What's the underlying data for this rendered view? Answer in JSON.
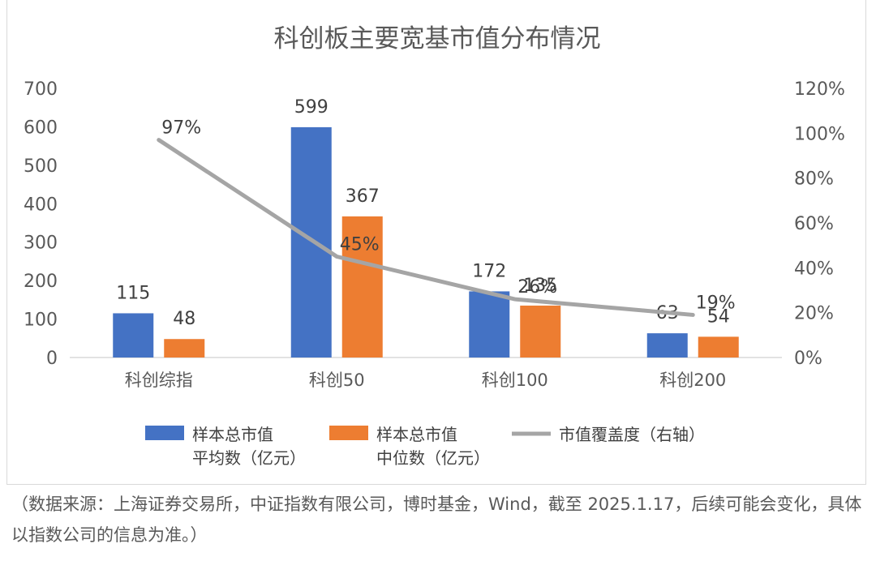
{
  "chart_data": {
    "type": "bar",
    "title": "科创板主要宽基市值分布情况",
    "categories": [
      "科创综指",
      "科创50",
      "科创100",
      "科创200"
    ],
    "series": [
      {
        "name": "样本总市值平均数（亿元）",
        "legend_lines": [
          "样本总市值",
          "平均数（亿元）"
        ],
        "kind": "bar",
        "axis": "left",
        "color": "#4472C4",
        "values": [
          115,
          599,
          172,
          63
        ]
      },
      {
        "name": "样本总市值中位数（亿元）",
        "legend_lines": [
          "样本总市值",
          "中位数（亿元）"
        ],
        "kind": "bar",
        "axis": "left",
        "color": "#ED7D31",
        "values": [
          48,
          367,
          135,
          54
        ]
      },
      {
        "name": "市值覆盖度（右轴）",
        "legend_lines": [
          "市值覆盖度（右轴）"
        ],
        "kind": "line",
        "axis": "right",
        "color": "#A5A5A5",
        "values": [
          97,
          45,
          26,
          19
        ],
        "labels": [
          "97%",
          "45%",
          "26%",
          "19%"
        ]
      }
    ],
    "y_left": {
      "min": 0,
      "max": 700,
      "ticks": [
        "0",
        "100",
        "200",
        "300",
        "400",
        "500",
        "600",
        "700"
      ]
    },
    "y_right": {
      "min": 0,
      "max": 120,
      "ticks": [
        "0%",
        "20%",
        "40%",
        "60%",
        "80%",
        "100%",
        "120%"
      ]
    },
    "grid": false,
    "legend_position": "bottom"
  },
  "footnote": "（数据来源：上海证券交易所，中证指数有限公司，博时基金，Wind，截至 2025.1.17，后续可能会变化，具体以指数公司的信息为准。）"
}
